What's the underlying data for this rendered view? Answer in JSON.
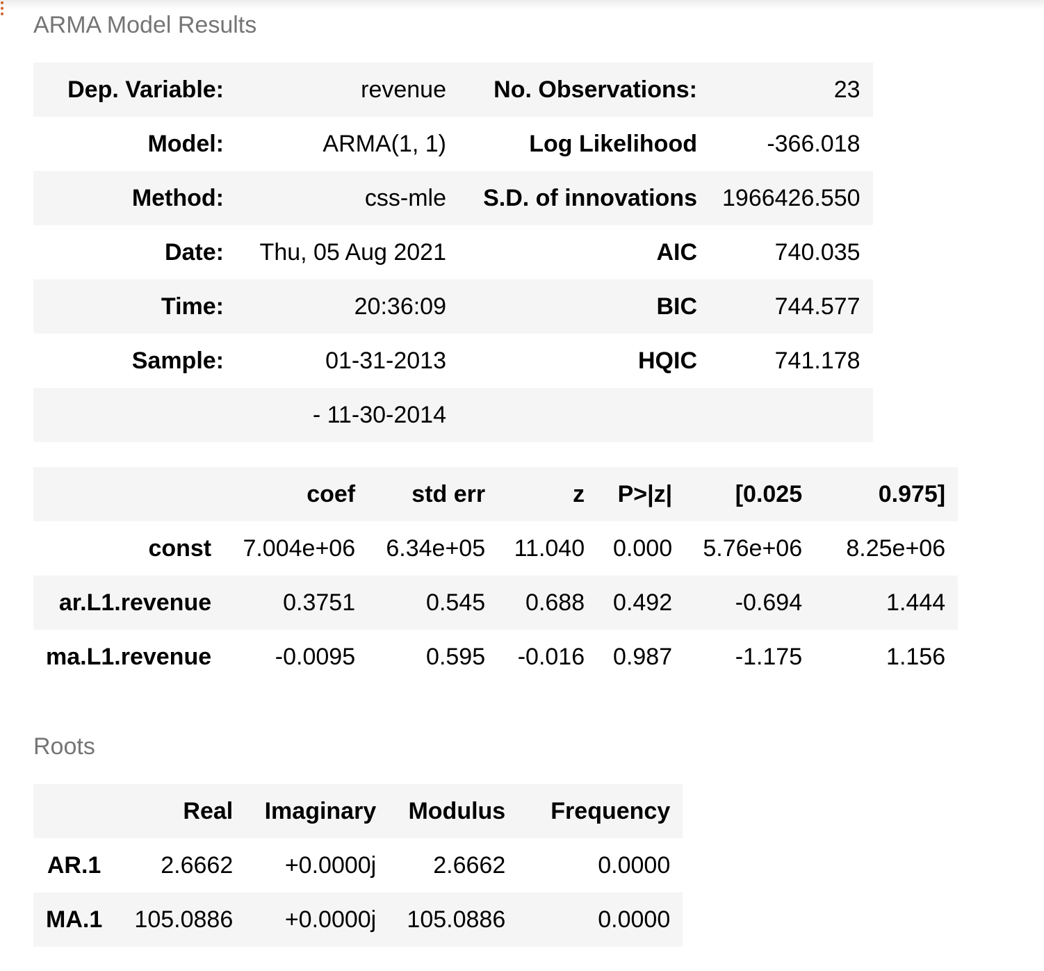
{
  "model_results": {
    "caption": "ARMA Model Results",
    "rows": [
      {
        "label1": "Dep. Variable:",
        "value1": "revenue",
        "label2": "No. Observations:",
        "value2": "23"
      },
      {
        "label1": "Model:",
        "value1": "ARMA(1, 1)",
        "label2": "Log Likelihood",
        "value2": "-366.018"
      },
      {
        "label1": "Method:",
        "value1": "css-mle",
        "label2": "S.D. of innovations",
        "value2": "1966426.550"
      },
      {
        "label1": "Date:",
        "value1": "Thu, 05 Aug 2021",
        "label2": "AIC",
        "value2": "740.035"
      },
      {
        "label1": "Time:",
        "value1": "20:36:09",
        "label2": "BIC",
        "value2": "744.577"
      },
      {
        "label1": "Sample:",
        "value1": "01-31-2013",
        "label2": "HQIC",
        "value2": "741.178"
      },
      {
        "label1": "",
        "value1": "- 11-30-2014",
        "label2": "",
        "value2": ""
      }
    ]
  },
  "coefficients": {
    "headers": [
      "",
      "coef",
      "std err",
      "z",
      "P>|z|",
      "[0.025",
      "0.975]"
    ],
    "rows": [
      {
        "name": "const",
        "values": [
          "7.004e+06",
          "6.34e+05",
          "11.040",
          "0.000",
          "5.76e+06",
          "8.25e+06"
        ]
      },
      {
        "name": "ar.L1.revenue",
        "values": [
          "0.3751",
          "0.545",
          "0.688",
          "0.492",
          "-0.694",
          "1.444"
        ]
      },
      {
        "name": "ma.L1.revenue",
        "values": [
          "-0.0095",
          "0.595",
          "-0.016",
          "0.987",
          "-1.175",
          "1.156"
        ]
      }
    ]
  },
  "roots": {
    "caption": "Roots",
    "headers": [
      "",
      "Real",
      "Imaginary",
      "Modulus",
      "Frequency"
    ],
    "rows": [
      {
        "name": "AR.1",
        "values": [
          "2.6662",
          "+0.0000j",
          "2.6662",
          "0.0000"
        ]
      },
      {
        "name": "MA.1",
        "values": [
          "105.0886",
          "+0.0000j",
          "105.0886",
          "0.0000"
        ]
      }
    ]
  },
  "colors": {
    "shaded_row": "#f5f5f5",
    "caption_text": "#757575",
    "prompt_marker": "#d0632a"
  }
}
